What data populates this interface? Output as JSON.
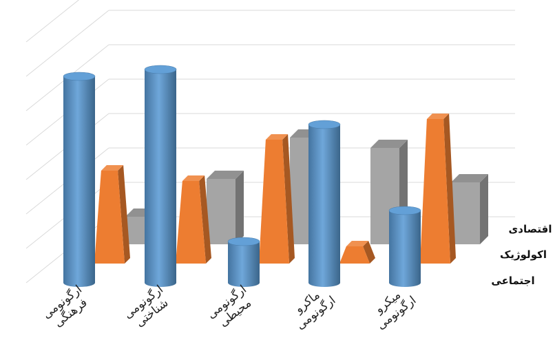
{
  "chart_data": {
    "type": "bar",
    "style": "3d-clustered-depth",
    "categories": [
      [
        "ارگونومی",
        "فرهنگی"
      ],
      [
        "ارگونومی",
        "شناختی"
      ],
      [
        "ارگونومی",
        "محیطی"
      ],
      [
        "ماکرو",
        "ارگونومی"
      ],
      [
        "میکرو",
        "ارگونومی"
      ]
    ],
    "series": [
      {
        "name": "اجتماعی",
        "shape": "cylinder",
        "color": "#5B9BD5",
        "values": [
          6.0,
          6.2,
          1.2,
          4.6,
          2.1
        ]
      },
      {
        "name": "اکولوژیک",
        "shape": "pyramid",
        "color": "#ED7D31",
        "values": [
          2.7,
          2.4,
          3.6,
          0.5,
          4.2
        ]
      },
      {
        "name": "اقتصادی",
        "shape": "box",
        "color": "#A5A5A5",
        "values": [
          0.8,
          1.9,
          3.1,
          2.8,
          1.8
        ]
      }
    ],
    "ylim": [
      0,
      7
    ],
    "grid": true,
    "legend": "series labels along the right-side depth axis"
  }
}
